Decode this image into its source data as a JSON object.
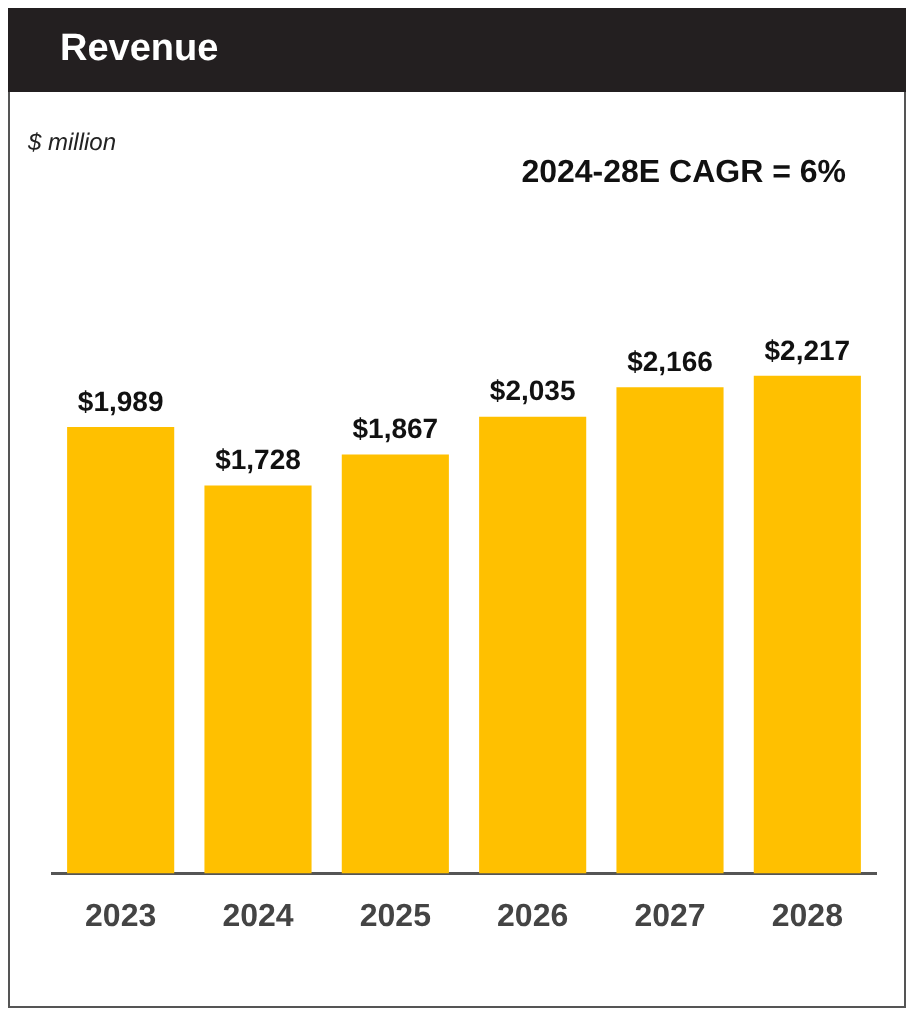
{
  "chart_data": {
    "type": "bar",
    "title": "Revenue",
    "annotations": [
      "$ million",
      "2024-28E CAGR = 6%"
    ],
    "categories": [
      "2023",
      "2024",
      "2025",
      "2026",
      "2027",
      "2028"
    ],
    "values": [
      1989,
      1728,
      1867,
      2035,
      2166,
      2217
    ],
    "value_labels": [
      "$1,989",
      "$1,728",
      "$1,867",
      "$2,035",
      "$2,166",
      "$2,217"
    ],
    "color": "#ffc000",
    "grid": false,
    "legend": false
  }
}
